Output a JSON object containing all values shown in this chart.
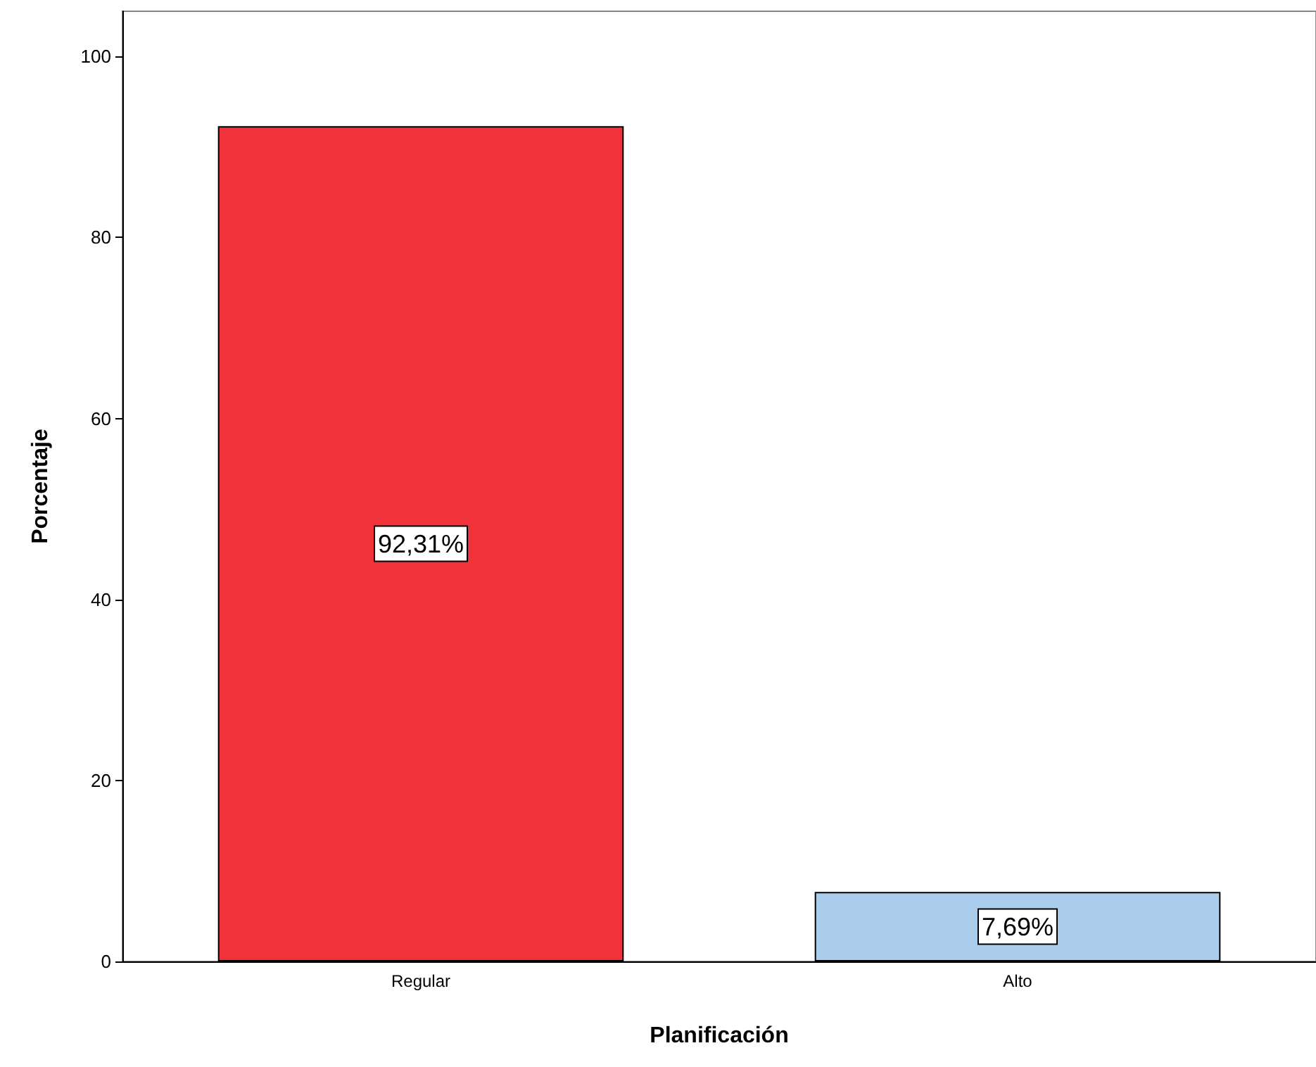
{
  "chart_data": {
    "type": "bar",
    "xlabel": "Planificación",
    "ylabel": "Porcentaje",
    "categories": [
      "Regular",
      "Alto"
    ],
    "values": [
      92.31,
      7.69
    ],
    "colors": [
      "#f0323a",
      "#a9cdeb"
    ],
    "value_labels": [
      "92,31%",
      "7,69%"
    ],
    "ylim": [
      0,
      105
    ],
    "yticks": [
      0,
      20,
      40,
      60,
      80,
      100
    ]
  }
}
